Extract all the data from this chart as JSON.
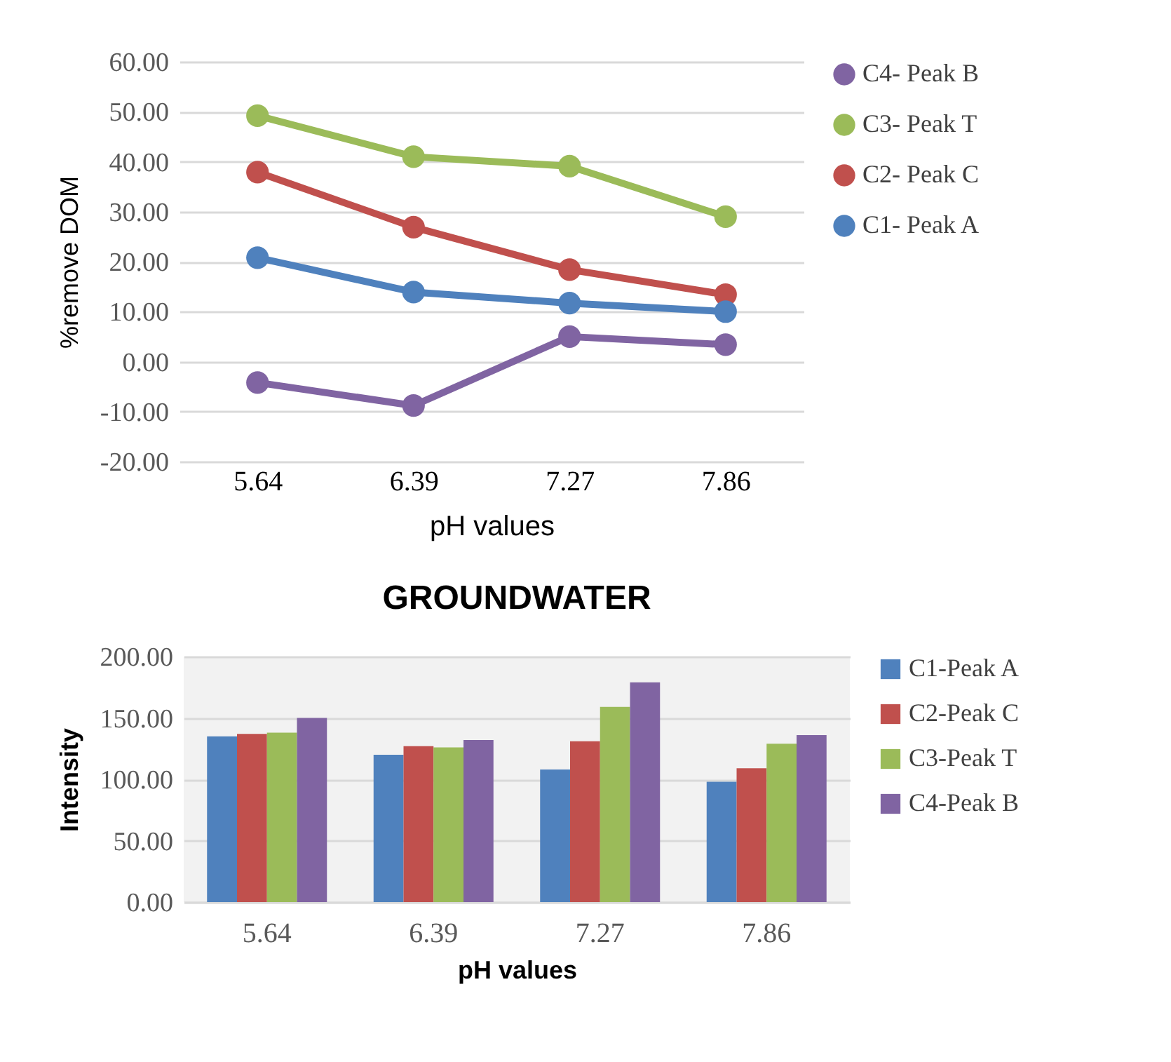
{
  "chart_data": [
    {
      "type": "line",
      "xlabel": "pH values",
      "ylabel": "%remove DOM",
      "categories": [
        "5.64",
        "6.39",
        "7.27",
        "7.86"
      ],
      "series": [
        {
          "name": "C4- Peak B",
          "color": "#8064a2",
          "values": [
            -4.2,
            -8.8,
            5.0,
            3.4
          ]
        },
        {
          "name": "C3- Peak T",
          "color": "#9bbb59",
          "values": [
            49.2,
            41.0,
            39.1,
            29.0
          ]
        },
        {
          "name": "C2- Peak C",
          "color": "#c0504d",
          "values": [
            37.9,
            26.9,
            18.4,
            13.4
          ]
        },
        {
          "name": "C1- Peak A",
          "color": "#4f81bd",
          "values": [
            20.8,
            13.9,
            11.7,
            10.0
          ]
        }
      ],
      "ylim": [
        -20,
        60
      ],
      "yticks": [
        {
          "value": -20,
          "label": "-20.00"
        },
        {
          "value": -10,
          "label": "-10.00"
        },
        {
          "value": 0,
          "label": "0.00"
        },
        {
          "value": 10,
          "label": "10.00"
        },
        {
          "value": 20,
          "label": "20.00"
        },
        {
          "value": 30,
          "label": "30.00"
        },
        {
          "value": 40,
          "label": "40.00"
        },
        {
          "value": 50,
          "label": "50.00"
        },
        {
          "value": 60,
          "label": "60.00"
        }
      ],
      "grid": "y",
      "legend": "right",
      "marker": "circle"
    },
    {
      "type": "bar",
      "title": "GROUNDWATER",
      "xlabel": "pH values",
      "ylabel": "Intensity",
      "categories": [
        "5.64",
        "6.39",
        "7.27",
        "7.86"
      ],
      "series": [
        {
          "name": "C1-Peak A",
          "color": "#4f81bd",
          "values": [
            135,
            120,
            108,
            98
          ]
        },
        {
          "name": "C2-Peak C",
          "color": "#c0504d",
          "values": [
            137,
            127,
            131,
            109
          ]
        },
        {
          "name": "C3-Peak T",
          "color": "#9bbb59",
          "values": [
            138,
            126,
            159,
            129
          ]
        },
        {
          "name": "C4-Peak B",
          "color": "#8064a2",
          "values": [
            150,
            132,
            179,
            136
          ]
        }
      ],
      "ylim": [
        0,
        200
      ],
      "yticks": [
        {
          "value": 0,
          "label": "0.00"
        },
        {
          "value": 50,
          "label": "50.00"
        },
        {
          "value": 100,
          "label": "100.00"
        },
        {
          "value": 150,
          "label": "150.00"
        },
        {
          "value": 200,
          "label": "200.00"
        }
      ],
      "grid": "y",
      "legend": "right"
    }
  ]
}
